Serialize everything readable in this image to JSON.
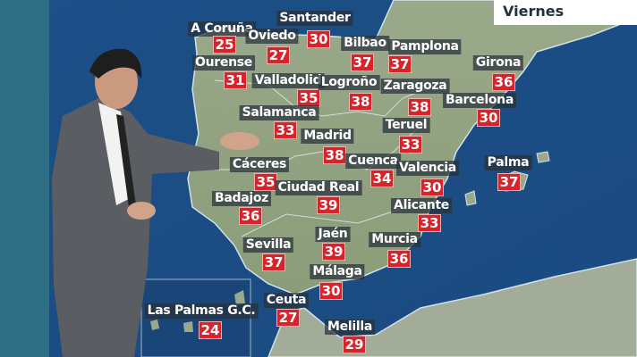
{
  "day_label": "Viernes",
  "colors": {
    "sea": "#1c4f86",
    "land": "#8fa27c",
    "temp_box": "#d9222a",
    "label_bg": "#28303a"
  },
  "cities": [
    {
      "name": "A Coruña",
      "temp": "25"
    },
    {
      "name": "Santander",
      "temp": "30"
    },
    {
      "name": "Oviedo",
      "temp": "27"
    },
    {
      "name": "Bilbao",
      "temp": "37"
    },
    {
      "name": "Pamplona",
      "temp": "37"
    },
    {
      "name": "Girona",
      "temp": "36"
    },
    {
      "name": "Ourense",
      "temp": "31"
    },
    {
      "name": "Valladolid",
      "temp": "35"
    },
    {
      "name": "Logroño",
      "temp": "38"
    },
    {
      "name": "Zaragoza",
      "temp": "38"
    },
    {
      "name": "Barcelona",
      "temp": "30"
    },
    {
      "name": "Salamanca",
      "temp": "33"
    },
    {
      "name": "Teruel",
      "temp": "33"
    },
    {
      "name": "Madrid",
      "temp": "38"
    },
    {
      "name": "Cuenca",
      "temp": "34"
    },
    {
      "name": "Valencia",
      "temp": "30"
    },
    {
      "name": "Palma",
      "temp": "37"
    },
    {
      "name": "Cáceres",
      "temp": "35"
    },
    {
      "name": "Ciudad Real",
      "temp": "39"
    },
    {
      "name": "Badajoz",
      "temp": "36"
    },
    {
      "name": "Alicante",
      "temp": "33"
    },
    {
      "name": "Sevilla",
      "temp": "37"
    },
    {
      "name": "Jaén",
      "temp": "39"
    },
    {
      "name": "Murcia",
      "temp": "36"
    },
    {
      "name": "Málaga",
      "temp": "30"
    },
    {
      "name": "Ceuta",
      "temp": "27"
    },
    {
      "name": "Las Palmas G.C.",
      "temp": "24"
    },
    {
      "name": "Melilla",
      "temp": "29"
    }
  ]
}
